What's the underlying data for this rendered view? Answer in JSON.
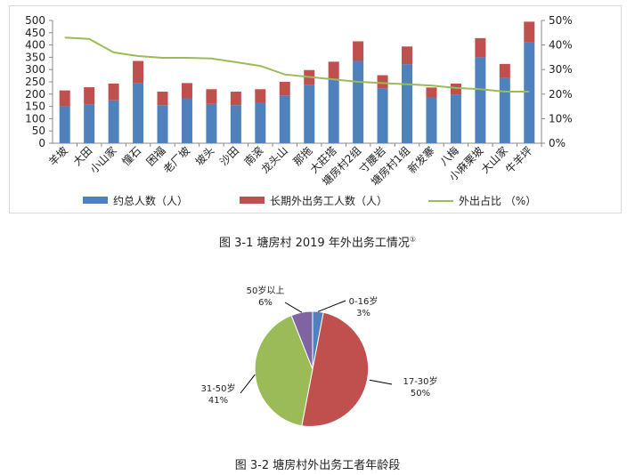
{
  "figure1": {
    "caption": "图 3-1 塘房村 2019 年外出务工情况",
    "caption_note": "①"
  },
  "figure2": {
    "caption": "图 3-2 塘房村外出务工者年龄段"
  },
  "chart_data": [
    {
      "type": "bar",
      "stacked": true,
      "categories": [
        "羊坡",
        "大田",
        "小山家",
        "憧石",
        "困福",
        "老厂坡",
        "坡头",
        "沙田",
        "南滚",
        "龙头山",
        "那拖",
        "大莊塔",
        "塘房村2组",
        "寸腰岩",
        "塘房村1组",
        "新发寨",
        "八梅",
        "小麻栗坡",
        "大山家",
        "牛羊坪"
      ],
      "series": [
        {
          "name": "约总人数（人）",
          "color": "#4f81bd",
          "axis": "left",
          "values": [
            150,
            158,
            175,
            245,
            155,
            183,
            160,
            155,
            165,
            195,
            238,
            262,
            335,
            222,
            322,
            185,
            198,
            350,
            265,
            410
          ]
        },
        {
          "name": "长期外出务工人数（人）",
          "color": "#c0504d",
          "axis": "left",
          "values": [
            65,
            70,
            68,
            90,
            55,
            62,
            60,
            55,
            55,
            55,
            60,
            70,
            80,
            55,
            72,
            42,
            45,
            78,
            58,
            85
          ]
        },
        {
          "name": "外出占比 （%）",
          "color": "#9bbb59",
          "axis": "right",
          "type": "line",
          "values": [
            43,
            42.5,
            37,
            35.5,
            34.8,
            34.8,
            34.5,
            33,
            31.5,
            28,
            27,
            26,
            25,
            24.5,
            24,
            23.5,
            22.5,
            22,
            21,
            21
          ]
        }
      ],
      "left_axis": {
        "min": 0,
        "max": 500,
        "ticks": [
          "0",
          "50",
          "100",
          "150",
          "200",
          "250",
          "300",
          "350",
          "400",
          "450",
          "500"
        ]
      },
      "right_axis": {
        "min": 0,
        "max": 50,
        "ticks": [
          "0%",
          "10%",
          "20%",
          "30%",
          "40%",
          "50%"
        ]
      },
      "legend_position": "bottom",
      "grid": false
    },
    {
      "type": "pie",
      "slices": [
        {
          "label": "0-16岁",
          "value": 3,
          "pct_text": "3%",
          "color": "#4f81bd"
        },
        {
          "label": "17-30岁",
          "value": 50,
          "pct_text": "50%",
          "color": "#c0504d"
        },
        {
          "label": "31-50岁",
          "value": 41,
          "pct_text": "41%",
          "color": "#9bbb59"
        },
        {
          "label": "50岁以上",
          "value": 6,
          "pct_text": "6%",
          "color": "#8064a2"
        }
      ]
    }
  ]
}
